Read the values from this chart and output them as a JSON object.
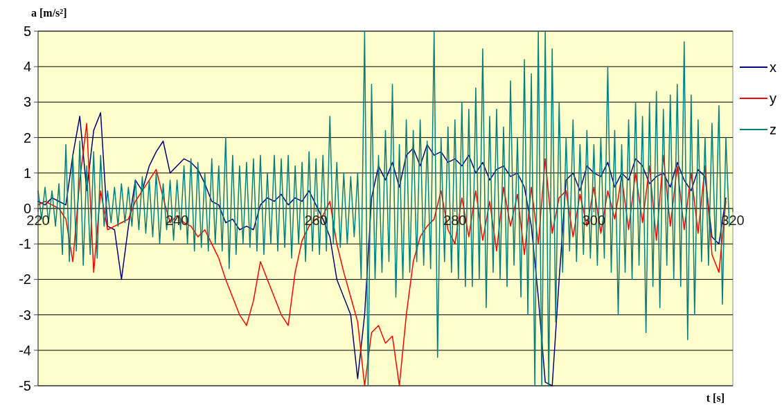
{
  "chart_data": {
    "type": "line",
    "xlabel": "t [s]",
    "ylabel": "a [m/s²]",
    "xlim": [
      220,
      320
    ],
    "xticks": [
      220,
      240,
      260,
      280,
      300,
      320
    ],
    "ylim": [
      -5,
      5
    ],
    "yticks": [
      -5,
      -4,
      -3,
      -2,
      -1,
      0,
      1,
      2,
      3,
      4,
      5
    ],
    "grid": "y",
    "legend": "right",
    "line_style": "solid",
    "marker": "none",
    "x": [
      220,
      221,
      222,
      223,
      224,
      225,
      226,
      227,
      228,
      229,
      230,
      231,
      232,
      233,
      234,
      235,
      236,
      237,
      238,
      239,
      240,
      241,
      242,
      243,
      244,
      245,
      246,
      247,
      248,
      249,
      250,
      251,
      252,
      253,
      254,
      255,
      256,
      257,
      258,
      259,
      260,
      261,
      262,
      263,
      264,
      265,
      266,
      267,
      268,
      269,
      270,
      271,
      272,
      273,
      274,
      275,
      276,
      277,
      278,
      279,
      280,
      281,
      282,
      283,
      284,
      285,
      286,
      287,
      288,
      289,
      290,
      291,
      292,
      293,
      294,
      295,
      296,
      297,
      298,
      299,
      300,
      301,
      302,
      303,
      304,
      305,
      306,
      307,
      308,
      309,
      310,
      311,
      312,
      313,
      314,
      315,
      316,
      317,
      318,
      319
    ],
    "series": [
      {
        "name": "x",
        "color": "#000080",
        "values": [
          0.2,
          0.1,
          0.3,
          0.2,
          0.1,
          1.5,
          2.6,
          0.5,
          2.2,
          2.7,
          -0.5,
          -0.6,
          -2.0,
          -0.5,
          0.8,
          0.5,
          1.2,
          1.6,
          1.9,
          1.0,
          1.2,
          1.4,
          1.3,
          1.1,
          0.7,
          0.2,
          0.1,
          -0.4,
          -0.3,
          -0.6,
          -0.5,
          -0.6,
          0.1,
          0.3,
          0.2,
          0.4,
          0.1,
          0.3,
          0.2,
          0.5,
          0.1,
          -0.3,
          -0.8,
          -2.0,
          -2.5,
          -3.0,
          -4.8,
          -3.0,
          0.3,
          1.2,
          0.8,
          1.3,
          0.6,
          1.5,
          1.7,
          1.2,
          1.8,
          1.5,
          1.6,
          1.3,
          1.4,
          1.2,
          1.5,
          1.0,
          1.3,
          0.8,
          1.1,
          1.2,
          0.9,
          1.0,
          0.6,
          -0.5,
          -2.5,
          -4.9,
          -5,
          -2.0,
          0.8,
          1.0,
          0.5,
          1.2,
          1.0,
          0.9,
          1.3,
          0.6,
          1.0,
          0.8,
          1.4,
          1.2,
          0.7,
          0.9,
          1.0,
          0.6,
          1.3,
          0.8,
          0.5,
          1.1,
          0.9,
          -0.8,
          -1.0,
          0.3
        ]
      },
      {
        "name": "y",
        "color": "#ff0000",
        "values": [
          0.1,
          0.2,
          0.1,
          0.0,
          -0.3,
          -1.5,
          0.8,
          2.4,
          -1.8,
          0.5,
          -0.6,
          -0.5,
          -0.4,
          -0.3,
          0.2,
          0.5,
          0.8,
          1.1,
          0.3,
          -0.4,
          -0.2,
          -0.4,
          -0.5,
          -0.8,
          -0.6,
          -1.0,
          -1.4,
          -2.0,
          -2.5,
          -3.0,
          -3.3,
          -2.6,
          -1.5,
          -2.0,
          -2.5,
          -3.0,
          -3.3,
          -1.8,
          -0.9,
          -0.5,
          -0.3,
          -0.2,
          0.2,
          -1.0,
          -1.8,
          -2.5,
          -3.2,
          -5,
          -3.5,
          -3.3,
          -3.8,
          -3.6,
          -5,
          -3.0,
          -1.5,
          -0.8,
          -0.5,
          -0.3,
          0.5,
          -0.6,
          -1.0,
          0.3,
          -0.8,
          0.5,
          -0.9,
          0.2,
          -1.2,
          0.6,
          -0.5,
          0.4,
          -1.3,
          0.6,
          -1.0,
          1.4,
          -0.7,
          0.3,
          0.5,
          -0.8,
          0.4,
          -0.5,
          0.6,
          -0.7,
          0.5,
          -0.3,
          0.9,
          -0.6,
          1.0,
          -0.4,
          1.2,
          -0.9,
          1.5,
          -0.5,
          1.2,
          -0.6,
          1.0,
          -0.7,
          1.2,
          -1.3,
          -1.8,
          0.2
        ]
      },
      {
        "name": "z",
        "color": "#008080",
        "x": [
          220,
          220.5,
          221,
          221.5,
          222,
          222.5,
          223,
          223.5,
          224,
          224.5,
          225,
          225.5,
          226,
          226.5,
          227,
          227.5,
          228,
          228.5,
          229,
          229.5,
          230,
          230.5,
          231,
          231.5,
          232,
          232.5,
          233,
          233.5,
          234,
          234.5,
          235,
          235.5,
          236,
          236.5,
          237,
          237.5,
          238,
          238.5,
          239,
          239.5,
          240,
          240.5,
          241,
          241.5,
          242,
          242.5,
          243,
          243.5,
          244,
          244.5,
          245,
          245.5,
          246,
          246.5,
          247,
          247.5,
          248,
          248.5,
          249,
          249.5,
          250,
          250.5,
          251,
          251.5,
          252,
          252.5,
          253,
          253.5,
          254,
          254.5,
          255,
          255.5,
          256,
          256.5,
          257,
          257.5,
          258,
          258.5,
          259,
          259.5,
          260,
          260.5,
          261,
          261.5,
          262,
          262.5,
          263,
          263.5,
          264,
          264.5,
          265,
          265.5,
          266,
          266.5,
          267,
          267.5,
          268,
          268.5,
          269,
          269.5,
          270,
          270.5,
          271,
          271.5,
          272,
          272.5,
          273,
          273.5,
          274,
          274.5,
          275,
          275.5,
          276,
          276.5,
          277,
          277.5,
          278,
          278.5,
          279,
          279.5,
          280,
          280.5,
          281,
          281.5,
          282,
          282.5,
          283,
          283.5,
          284,
          284.5,
          285,
          285.5,
          286,
          286.5,
          287,
          287.5,
          288,
          288.5,
          289,
          289.5,
          290,
          290.5,
          291,
          291.5,
          292,
          292.5,
          293,
          293.5,
          294,
          294.5,
          295,
          295.5,
          296,
          296.5,
          297,
          297.5,
          298,
          298.5,
          299,
          299.5,
          300,
          300.5,
          301,
          301.5,
          302,
          302.5,
          303,
          303.5,
          304,
          304.5,
          305,
          305.5,
          306,
          306.5,
          307,
          307.5,
          308,
          308.5,
          309,
          309.5,
          310,
          310.5,
          311,
          311.5,
          312,
          312.5,
          313,
          313.5,
          314,
          314.5,
          315,
          315.5,
          316,
          316.5,
          317,
          317.5,
          318,
          318.5,
          319,
          319.5
        ],
        "values": [
          0.5,
          -0.3,
          0.6,
          -0.4,
          0.5,
          -0.5,
          0.7,
          -1.3,
          1.8,
          -1.5,
          1.5,
          -1.2,
          1.9,
          -1.6,
          1.2,
          -1.3,
          1.6,
          -1.4,
          1.5,
          -0.5,
          0.5,
          -0.4,
          0.6,
          -0.5,
          0.7,
          -0.4,
          0.6,
          -0.5,
          0.8,
          -0.6,
          0.9,
          -0.7,
          0.8,
          -0.8,
          1.0,
          -1.0,
          0.7,
          -0.6,
          0.8,
          -0.9,
          0.8,
          -0.6,
          1.2,
          -1.0,
          1.4,
          -1.2,
          1.3,
          -1.1,
          1.0,
          -1.2,
          1.4,
          -1.0,
          1.2,
          -1.2,
          2.0,
          -1.7,
          1.5,
          -1.3,
          1.2,
          -1.0,
          1.3,
          -1.1,
          1.4,
          -1.2,
          1.5,
          -1.3,
          1.0,
          -1.0,
          1.5,
          -1.2,
          1.4,
          -1.1,
          1.5,
          -1.4,
          1.2,
          -1.0,
          1.3,
          -1.5,
          1.6,
          -1.2,
          1.4,
          -1.3,
          1.5,
          -1.2,
          2.6,
          -1.0,
          1.3,
          -1.1,
          1.0,
          -1.0,
          0.9,
          -0.8,
          1.0,
          -2.0,
          5,
          -5,
          3.5,
          -2,
          1.5,
          -1.8,
          2.2,
          -1.5,
          3.5,
          -2.5,
          1.8,
          -2.0,
          2.5,
          -1.8,
          2.2,
          -1.5,
          2.5,
          -1.6,
          1.9,
          -1.7,
          5,
          -4.2,
          2.0,
          -1.5,
          2.3,
          -1.8,
          2.5,
          -2.0,
          3.0,
          -2.2,
          2.8,
          -2.2,
          3.4,
          -2.0,
          4.5,
          -2.8,
          2.6,
          -1.8,
          2.8,
          -2.0,
          2.3,
          -2.2,
          3.6,
          -1.6,
          2.0,
          -2.5,
          4.2,
          -3.0,
          3.8,
          -5,
          5,
          -5,
          5,
          -5,
          4.5,
          -3.2,
          3.0,
          -1.8,
          2.0,
          -1.2,
          2.5,
          -1.5,
          1.8,
          -1.3,
          2.2,
          -1.4,
          1.8,
          -1.6,
          2.0,
          -1.4,
          4.0,
          -1.8,
          2.2,
          -3.0,
          1.8,
          -1.8,
          2.5,
          -2.0,
          3.0,
          -1.6,
          2.6,
          -3.5,
          3.0,
          -2.2,
          3.3,
          -2.8,
          2.8,
          -1.6,
          3.2,
          -2.0,
          3.5,
          -2.2,
          4.7,
          -3.7,
          3.2,
          -3.0,
          2.5,
          -1.5,
          2.0,
          -1.6,
          2.4,
          -1.2,
          2.9,
          -2.7,
          2.0,
          -0.5
        ]
      }
    ]
  }
}
